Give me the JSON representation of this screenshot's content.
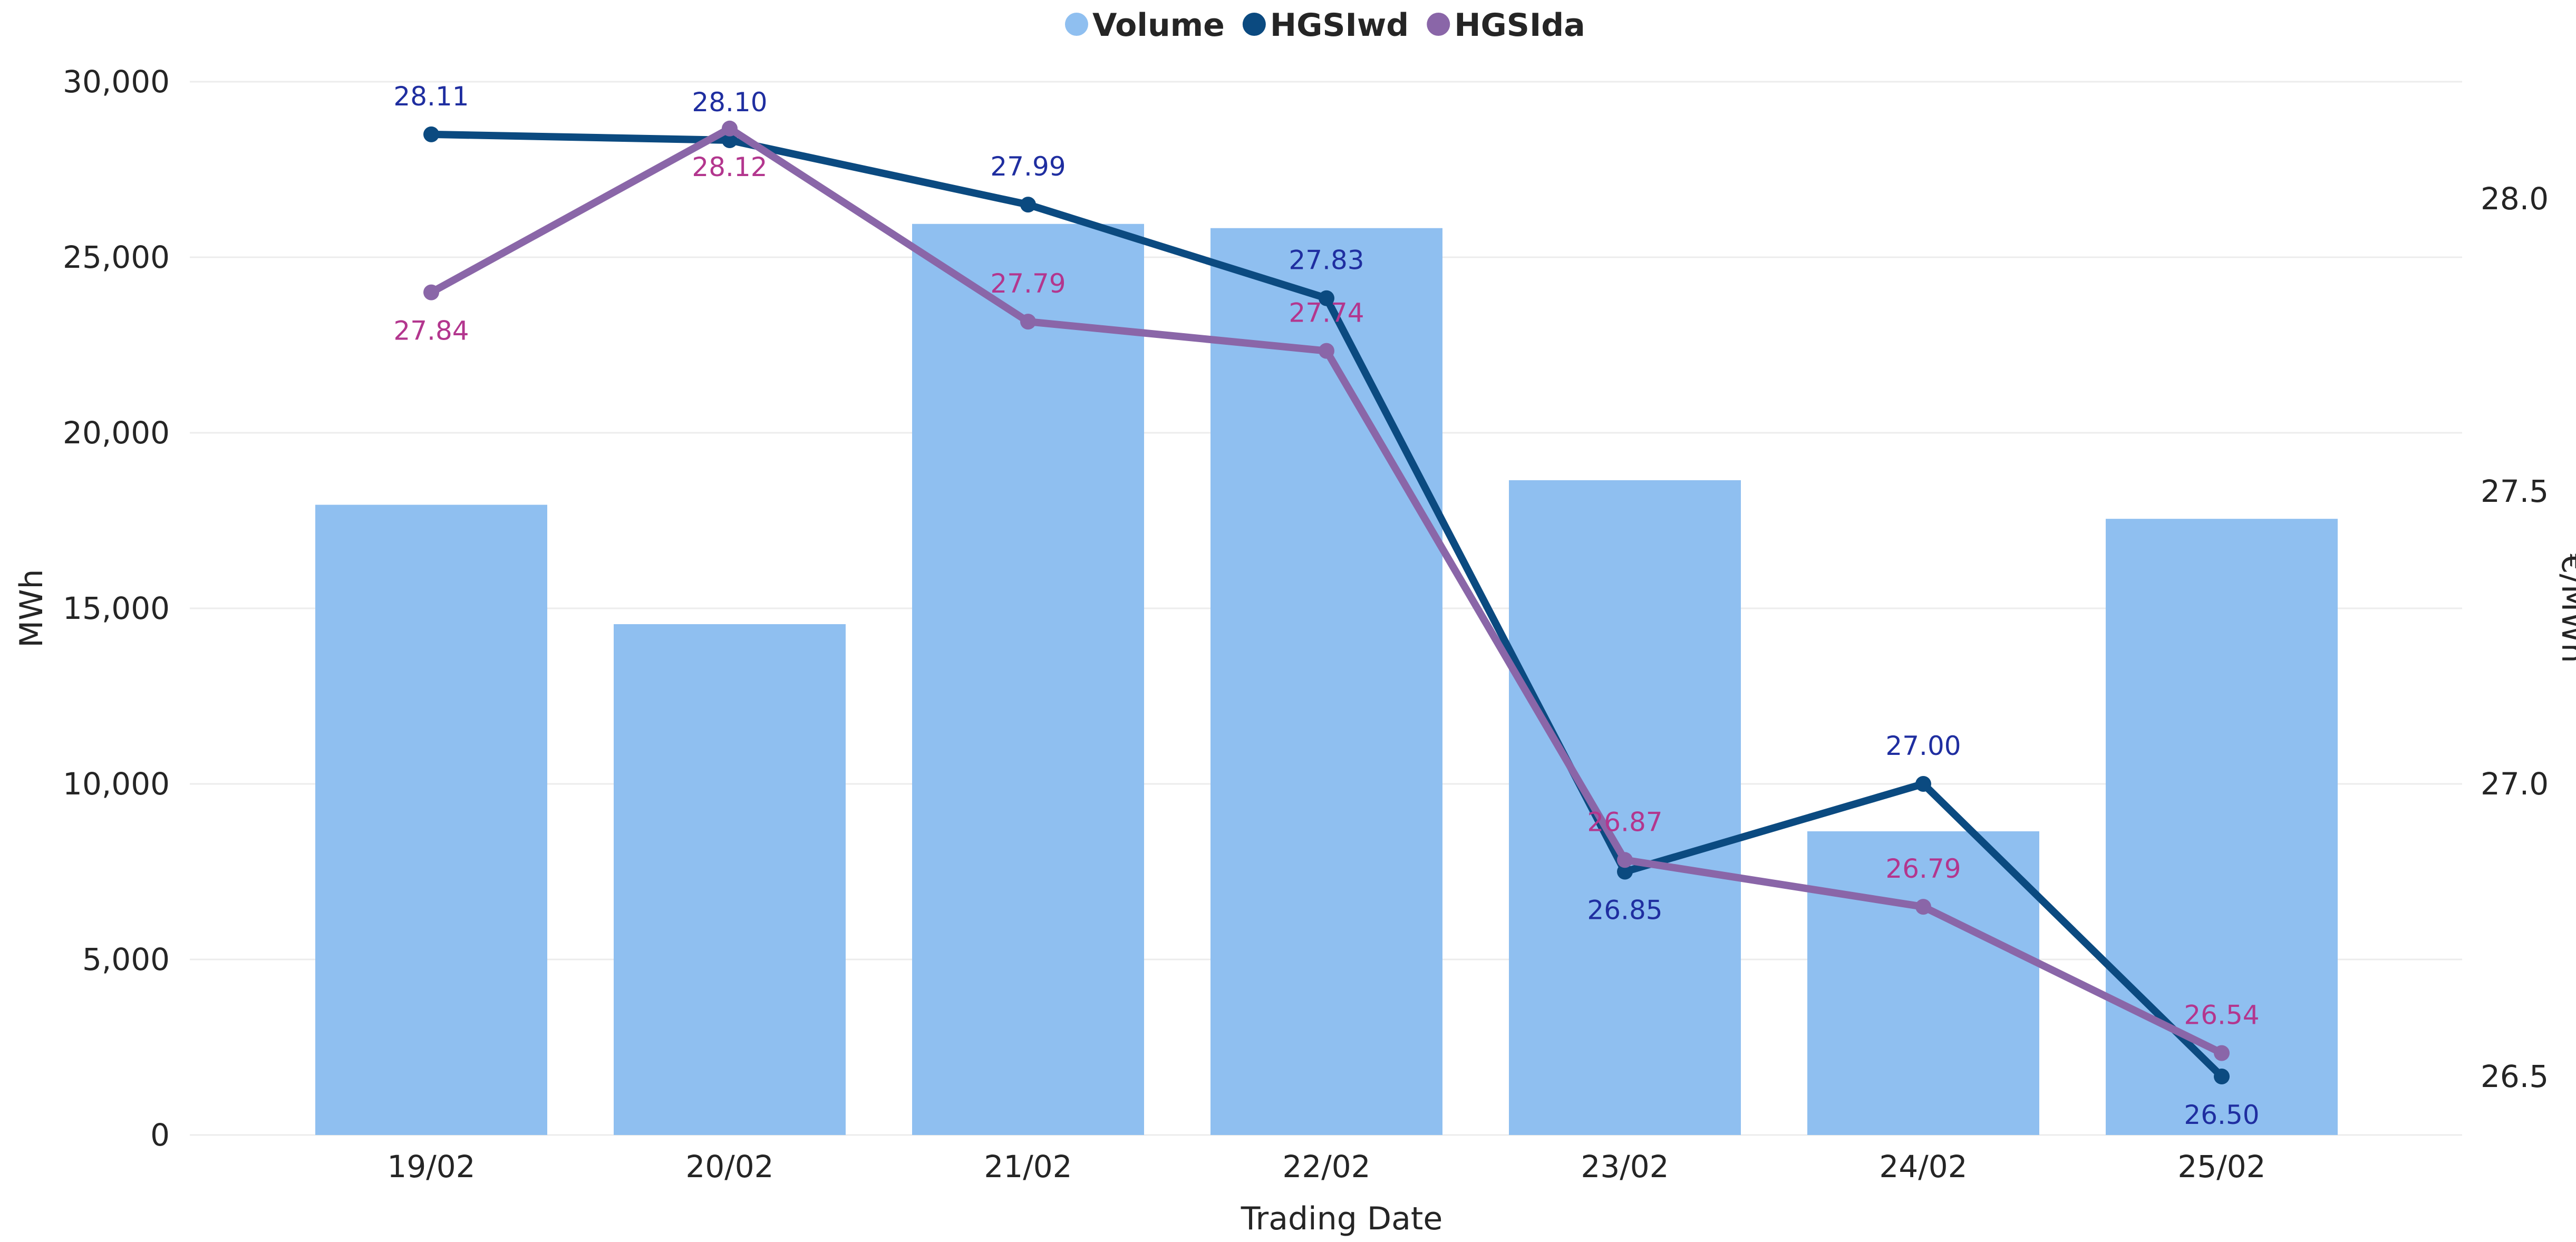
{
  "chart_data": {
    "type": "bar+line",
    "xlabel": "Trading Date",
    "ylabel_left": "MWh",
    "ylabel_right": "€/MWh",
    "categories": [
      "19/02",
      "20/02",
      "21/02",
      "22/02",
      "23/02",
      "24/02",
      "25/02"
    ],
    "left_axis": {
      "min": 0,
      "max": 30000,
      "ticks": [
        0,
        5000,
        10000,
        15000,
        20000,
        25000,
        30000
      ],
      "tick_labels": [
        "0",
        "5,000",
        "10,000",
        "15,000",
        "20,000",
        "25,000",
        "30,000"
      ]
    },
    "right_axis": {
      "min": 26.4,
      "max": 28.2,
      "ticks": [
        26.5,
        27.0,
        27.5,
        28.0
      ],
      "tick_labels": [
        "26.5",
        "27.0",
        "27.5",
        "28.0"
      ]
    },
    "legend": {
      "placement": "top-center"
    },
    "grid": true,
    "series": [
      {
        "name": "Volume",
        "type": "bar",
        "axis": "left",
        "color": "#8fbff0",
        "values": [
          17950,
          14550,
          25950,
          25830,
          18650,
          8650,
          17550
        ]
      },
      {
        "name": "HGSIwd",
        "type": "line",
        "axis": "right",
        "color": "#0b4a80",
        "label_color": "#1f2ea0",
        "values": [
          28.11,
          28.1,
          27.99,
          27.83,
          26.85,
          27.0,
          26.5
        ],
        "labels": [
          "28.11",
          "28.10",
          "27.99",
          "27.83",
          "26.85",
          "27.00",
          "26.50"
        ],
        "label_pos": [
          "above",
          "above",
          "above",
          "above",
          "below",
          "above",
          "below"
        ]
      },
      {
        "name": "HGSIda",
        "type": "line",
        "axis": "right",
        "color": "#8a66a8",
        "label_color": "#b3368e",
        "values": [
          27.84,
          28.12,
          27.79,
          27.74,
          26.87,
          26.79,
          26.54
        ],
        "labels": [
          "27.84",
          "28.12",
          "27.79",
          "27.74",
          "26.87",
          "26.79",
          "26.54"
        ],
        "label_pos": [
          "below",
          "below",
          "above",
          "above",
          "above",
          "above",
          "above"
        ]
      }
    ]
  }
}
